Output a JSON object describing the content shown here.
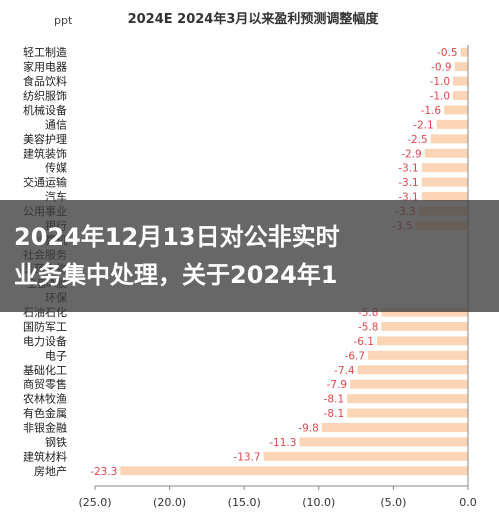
{
  "chart_data": {
    "type": "bar",
    "orientation": "horizontal",
    "title": "2024E 2024年3月以来盈利预测调整幅度",
    "unit_label": "ppt",
    "categories": [
      "轻工制造",
      "家用电器",
      "食品饮料",
      "纺织服饰",
      "机械设备",
      "通信",
      "美容护理",
      "建筑装饰",
      "传媒",
      "交通运输",
      "汽车",
      "公用事业",
      "银行",
      "计算机",
      "社会服务",
      "医药生物",
      "全部A股",
      "环保",
      "石油石化",
      "国防军工",
      "电力设备",
      "电子",
      "基础化工",
      "商贸零售",
      "农林牧渔",
      "有色金属",
      "非银金融",
      "钢铁",
      "建筑材料",
      "房地产"
    ],
    "values": [
      -0.5,
      -0.9,
      -1.0,
      -1.0,
      -1.6,
      -2.1,
      -2.5,
      -2.9,
      -3.1,
      -3.1,
      -3.1,
      -3.3,
      -3.5,
      null,
      null,
      null,
      null,
      null,
      -5.8,
      -5.8,
      -6.1,
      -6.7,
      -7.4,
      -7.9,
      -8.1,
      -8.1,
      -9.8,
      -11.3,
      -13.7,
      -23.3
    ],
    "value_labels": [
      "-0.5",
      "-0.9",
      "-1.0",
      "-1.0",
      "-1.6",
      "-2.1",
      "-2.5",
      "-2.9",
      "-3.1",
      "-3.1",
      "-3.1",
      "-3.3",
      "-3.5",
      "",
      "",
      "",
      "",
      "",
      "-5.8",
      "-5.8",
      "-6.1",
      "-6.7",
      "-7.4",
      "-7.9",
      "-8.1",
      "-8.1",
      "-9.8",
      "-11.3",
      "-13.7",
      "-23.3"
    ],
    "xlim": [
      -25,
      0
    ],
    "xticks": [
      -25,
      -20,
      -15,
      -10,
      -5,
      0
    ],
    "xtick_labels": [
      "(25.0)",
      "(20.0)",
      "(15.0)",
      "(10.0)",
      "(5.0)",
      "0.0"
    ],
    "bar_color": "#fbd5b5",
    "label_color": "#e0474c",
    "grid": false,
    "legend": "none"
  },
  "overlay": {
    "line1": "2024年12月13日对公非实时",
    "line2": "业务集中处理，关于2024年1"
  }
}
